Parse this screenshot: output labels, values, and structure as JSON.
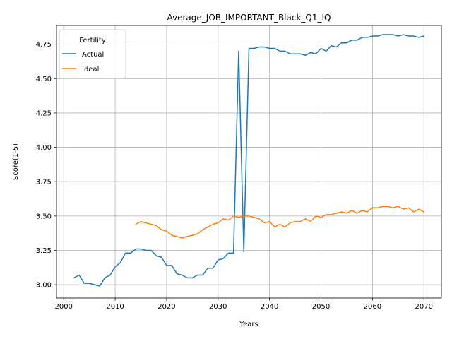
{
  "chart_data": {
    "type": "line",
    "title": "Average_JOB_IMPORTANT_Black_Q1_IQ",
    "xlabel": "Years",
    "ylabel": "Score(1-5)",
    "xlim": [
      1998.6,
      2073.4
    ],
    "ylim": [
      2.903,
      4.887
    ],
    "xticks": [
      2000,
      2010,
      2020,
      2030,
      2040,
      2050,
      2060,
      2070
    ],
    "yticks": [
      3.0,
      3.25,
      3.5,
      3.75,
      4.0,
      4.25,
      4.5,
      4.75
    ],
    "xtick_labels": [
      "2000",
      "2010",
      "2020",
      "2030",
      "2040",
      "2050",
      "2060",
      "2070"
    ],
    "ytick_labels": [
      "3.00",
      "3.25",
      "3.50",
      "3.75",
      "4.00",
      "4.25",
      "4.50",
      "4.75"
    ],
    "grid": true,
    "legend": {
      "title": "Fertility",
      "position": "top-left"
    },
    "series": [
      {
        "name": "Actual",
        "color": "#1f77b4",
        "x": [
          2002,
          2003,
          2004,
          2005,
          2006,
          2007,
          2008,
          2009,
          2010,
          2011,
          2012,
          2013,
          2014,
          2015,
          2016,
          2017,
          2018,
          2019,
          2020,
          2021,
          2022,
          2023,
          2024,
          2025,
          2026,
          2027,
          2028,
          2029,
          2030,
          2031,
          2032,
          2033,
          2034,
          2035,
          2036,
          2037,
          2038,
          2039,
          2040,
          2041,
          2042,
          2043,
          2044,
          2045,
          2046,
          2047,
          2048,
          2049,
          2050,
          2051,
          2052,
          2053,
          2054,
          2055,
          2056,
          2057,
          2058,
          2059,
          2060,
          2061,
          2062,
          2063,
          2064,
          2065,
          2066,
          2067,
          2068,
          2069,
          2070
        ],
        "y": [
          3.05,
          3.07,
          3.01,
          3.01,
          3.0,
          2.99,
          3.05,
          3.07,
          3.13,
          3.16,
          3.23,
          3.23,
          3.26,
          3.26,
          3.25,
          3.25,
          3.21,
          3.2,
          3.14,
          3.14,
          3.08,
          3.07,
          3.05,
          3.05,
          3.07,
          3.07,
          3.12,
          3.12,
          3.18,
          3.19,
          3.23,
          3.23,
          4.7,
          3.24,
          4.72,
          4.72,
          4.73,
          4.73,
          4.72,
          4.72,
          4.7,
          4.7,
          4.68,
          4.68,
          4.68,
          4.67,
          4.69,
          4.68,
          4.72,
          4.7,
          4.74,
          4.73,
          4.76,
          4.76,
          4.78,
          4.78,
          4.8,
          4.8,
          4.81,
          4.81,
          4.82,
          4.82,
          4.82,
          4.81,
          4.82,
          4.81,
          4.81,
          4.8,
          4.81
        ]
      },
      {
        "name": "Ideal",
        "color": "#ff7f0e",
        "x": [
          2014,
          2015,
          2016,
          2017,
          2018,
          2019,
          2020,
          2021,
          2022,
          2023,
          2024,
          2025,
          2026,
          2027,
          2028,
          2029,
          2030,
          2031,
          2032,
          2033,
          2034,
          2035,
          2036,
          2037,
          2038,
          2039,
          2040,
          2041,
          2042,
          2043,
          2044,
          2045,
          2046,
          2047,
          2048,
          2049,
          2050,
          2051,
          2052,
          2053,
          2054,
          2055,
          2056,
          2057,
          2058,
          2059,
          2060,
          2061,
          2062,
          2063,
          2064,
          2065,
          2066,
          2067,
          2068,
          2069,
          2070
        ],
        "y": [
          3.44,
          3.46,
          3.45,
          3.44,
          3.43,
          3.4,
          3.39,
          3.36,
          3.35,
          3.34,
          3.35,
          3.36,
          3.37,
          3.4,
          3.42,
          3.44,
          3.45,
          3.48,
          3.47,
          3.5,
          3.49,
          3.5,
          3.5,
          3.49,
          3.48,
          3.45,
          3.46,
          3.42,
          3.44,
          3.42,
          3.45,
          3.46,
          3.46,
          3.48,
          3.46,
          3.5,
          3.49,
          3.51,
          3.51,
          3.52,
          3.53,
          3.52,
          3.54,
          3.52,
          3.54,
          3.53,
          3.56,
          3.56,
          3.57,
          3.57,
          3.56,
          3.57,
          3.55,
          3.56,
          3.53,
          3.55,
          3.53
        ]
      }
    ]
  }
}
